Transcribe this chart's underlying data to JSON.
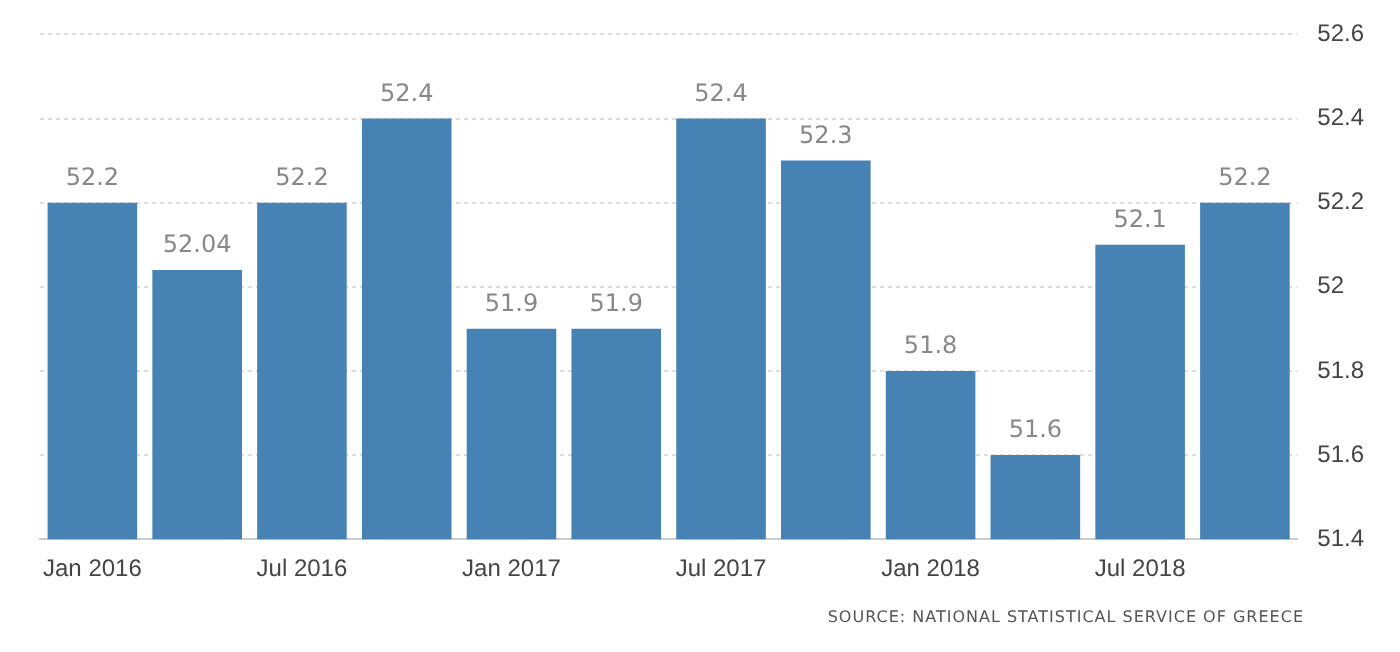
{
  "chart_data": {
    "type": "bar",
    "categories": [
      "Jan 2016",
      null,
      "Jul 2016",
      null,
      "Jan 2017",
      null,
      "Jul 2017",
      null,
      "Jan 2018",
      null,
      "Jul 2018",
      null
    ],
    "values": [
      52.2,
      52.04,
      52.2,
      52.4,
      51.9,
      51.9,
      52.4,
      52.3,
      51.8,
      51.6,
      52.1,
      52.2
    ],
    "color": "#4682b4",
    "ylim": [
      51.4,
      52.6
    ],
    "yticks": [
      51.4,
      51.6,
      51.8,
      52,
      52.2,
      52.4,
      52.6
    ],
    "grid": "y",
    "data_labels": true,
    "annotations": [
      "SOURCE: NATIONAL STATISTICAL SERVICE OF GREECE"
    ]
  }
}
